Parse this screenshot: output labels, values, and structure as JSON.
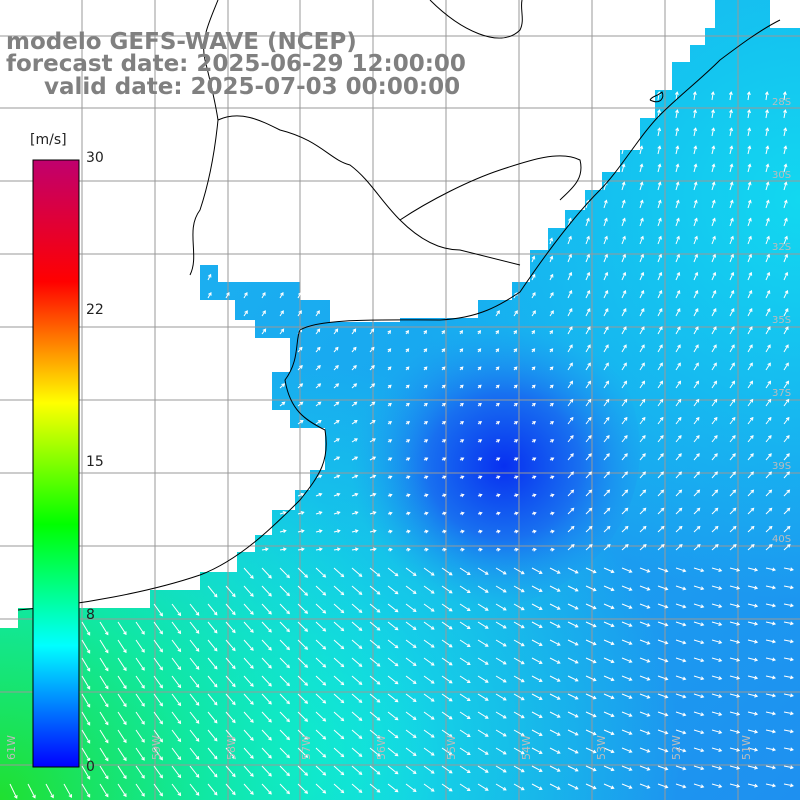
{
  "title": {
    "line1": "modelo GEFS-WAVE (NCEP)",
    "line2": "forecast date: 2025-06-29 12:00:00",
    "line3": "valid date: 2025-07-03 00:00:00"
  },
  "colorbar": {
    "unit": "[m/s]",
    "ticks": [
      "30",
      "22",
      "15",
      "8",
      "0"
    ],
    "tick_values": [
      30,
      22,
      15,
      8,
      0
    ],
    "colors": [
      "#0000ff",
      "#00ffff",
      "#00ff00",
      "#ffff00",
      "#ff0000",
      "#c0006e"
    ]
  },
  "map": {
    "variable": "wind speed and direction",
    "lon_labels": [
      "61W",
      "59W",
      "58W",
      "57W",
      "56W",
      "55W",
      "54W",
      "53W",
      "52W",
      "51W"
    ],
    "lat_labels": [
      "28S",
      "30S",
      "32S",
      "35S",
      "37S",
      "39S",
      "40S"
    ],
    "land_color": "#ffffff",
    "grid_color": "#999999",
    "arrow_color": "#ffffff"
  }
}
